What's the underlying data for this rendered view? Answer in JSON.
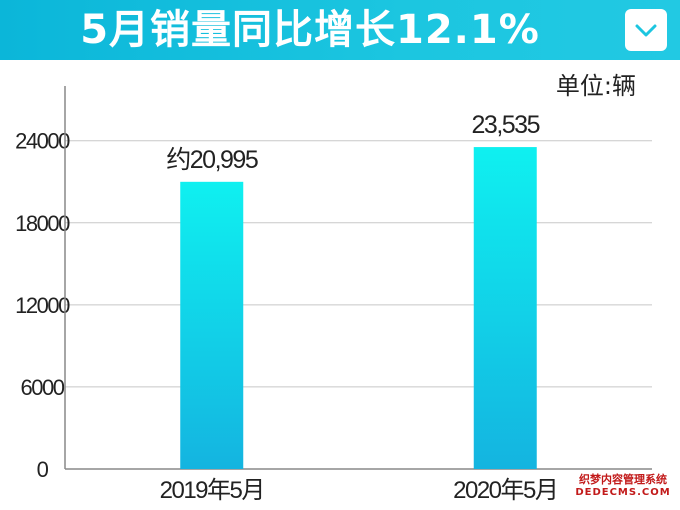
{
  "header": {
    "title": "5月销量同比增长12.1%",
    "dropdown_icon": "chevron-down-icon"
  },
  "unit_label": "单位:辆",
  "watermark": {
    "line1": "织梦内容管理系统",
    "line2": "DEDECMS.COM"
  },
  "colors": {
    "banner": "#1cc6e0",
    "bar_top": "#0ff0f0",
    "bar_bottom": "#14b4e0",
    "grid": "#c8c8c8",
    "axis": "#888888",
    "watermark": "#c21a1a"
  },
  "chart_data": {
    "type": "bar",
    "title": "5月销量同比增长12.1%",
    "xlabel": "",
    "ylabel": "",
    "unit": "单位:辆",
    "categories": [
      "2019年5月",
      "2020年5月"
    ],
    "values": [
      20995,
      23535
    ],
    "data_labels": [
      "约20,995",
      "23,535"
    ],
    "yticks": [
      0,
      6000,
      12000,
      18000,
      24000
    ],
    "ylim": [
      0,
      28000
    ],
    "grid": true,
    "legend": "none"
  }
}
